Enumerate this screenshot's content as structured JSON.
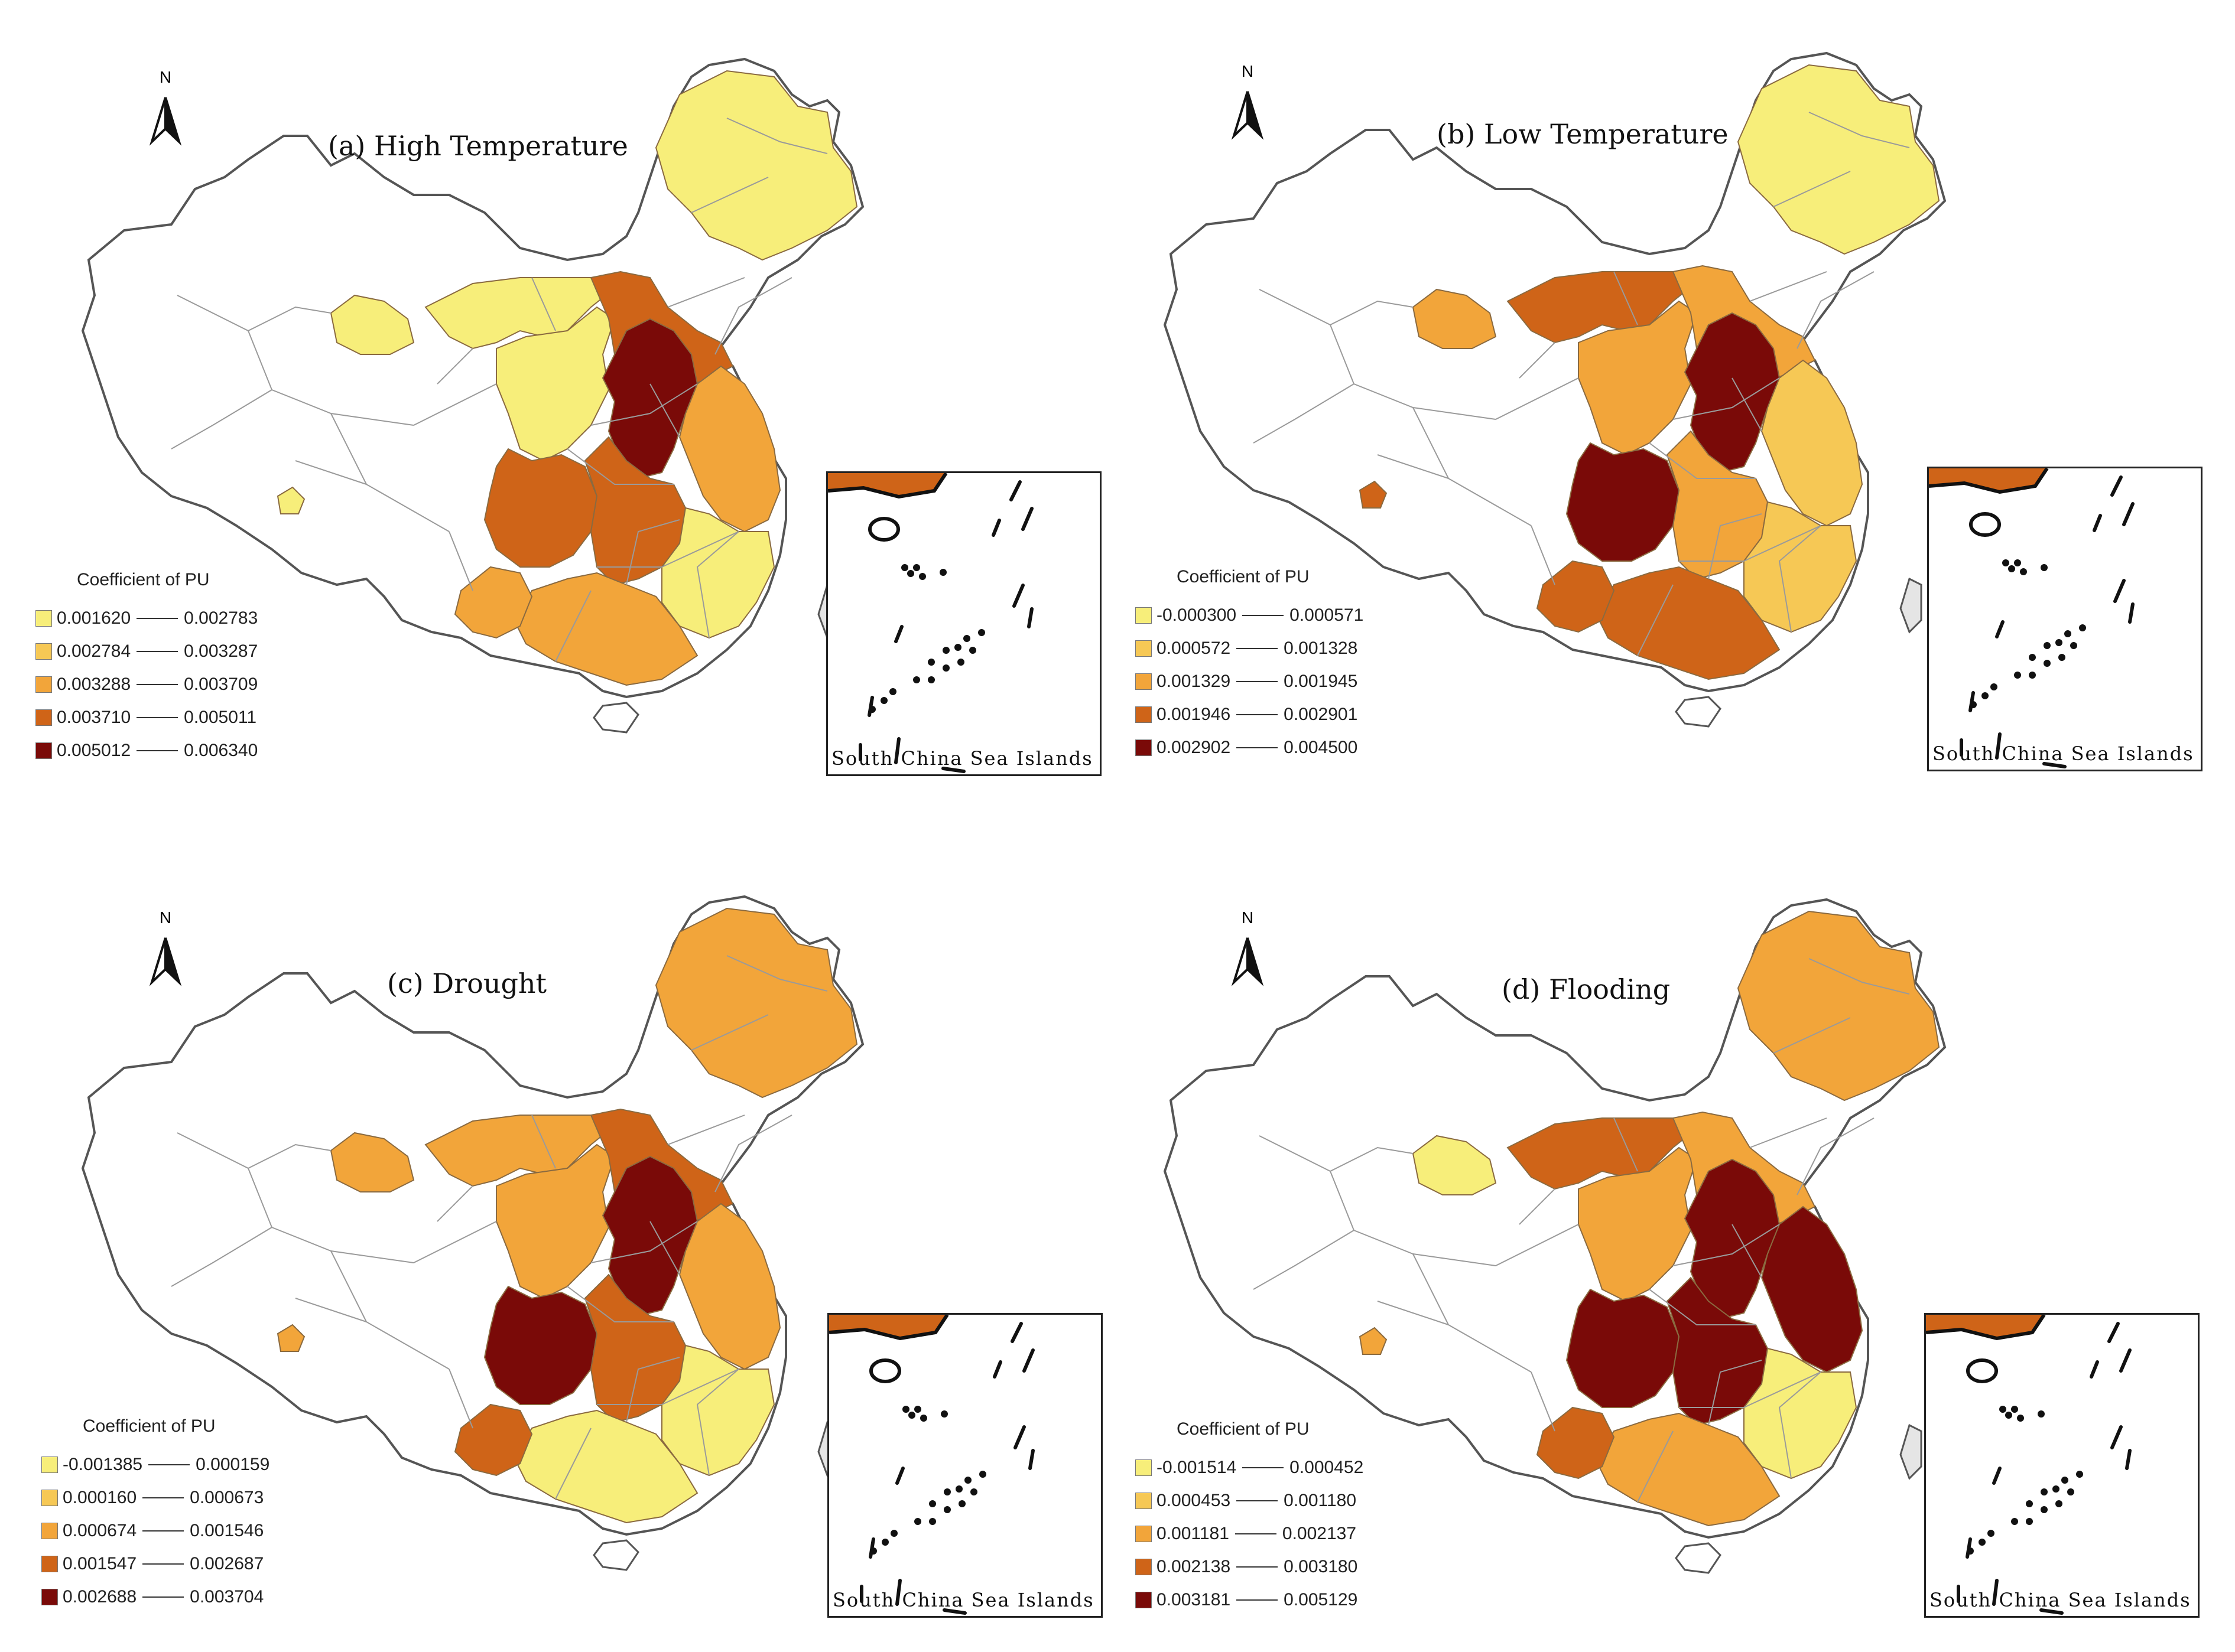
{
  "colors": {
    "c1": "#f7ee7a",
    "c2": "#f6c855",
    "c3": "#f2a53a",
    "c4": "#cf6418",
    "c5": "#7a0a08",
    "boundary": "#9a9a9a",
    "outline": "#555555"
  },
  "north_label": "N",
  "legend_title": "Coefficient of PU",
  "inset_caption": "South China Sea Islands",
  "panels": [
    {
      "id": "a",
      "title": "(a) High Temperature",
      "classes": [
        {
          "low": "0.001620",
          "high": "0.002783",
          "color": "#f7ee7a"
        },
        {
          "low": "0.002784",
          "high": "0.003287",
          "color": "#f6c855"
        },
        {
          "low": "0.003288",
          "high": "0.003709",
          "color": "#f2a53a"
        },
        {
          "low": "0.003710",
          "high": "0.005011",
          "color": "#cf6418"
        },
        {
          "low": "0.005012",
          "high": "0.006340",
          "color": "#7a0a08"
        }
      ],
      "regions": {
        "northeast": 1,
        "north_china": 5,
        "north_central": 4,
        "inner_mongolia_west": 1,
        "loess": 1,
        "sichuan": 4,
        "central": 4,
        "east_coast": 3,
        "south": 3,
        "southwest": 3,
        "xinjiang_north": 1,
        "tibet_spot": 1,
        "east_south": 1
      }
    },
    {
      "id": "b",
      "title": "(b) Low Temperature",
      "classes": [
        {
          "low": "-0.000300",
          "high": "0.000571",
          "color": "#f7ee7a"
        },
        {
          "low": "0.000572",
          "high": "0.001328",
          "color": "#f6c855"
        },
        {
          "low": "0.001329",
          "high": "0.001945",
          "color": "#f2a53a"
        },
        {
          "low": "0.001946",
          "high": "0.002901",
          "color": "#cf6418"
        },
        {
          "low": "0.002902",
          "high": "0.004500",
          "color": "#7a0a08"
        }
      ],
      "regions": {
        "northeast": 1,
        "north_china": 5,
        "north_central": 3,
        "inner_mongolia_west": 4,
        "loess": 3,
        "sichuan": 5,
        "central": 3,
        "east_coast": 2,
        "south": 4,
        "southwest": 4,
        "xinjiang_north": 3,
        "tibet_spot": 4,
        "east_south": 2
      }
    },
    {
      "id": "c",
      "title": "(c) Drought",
      "classes": [
        {
          "low": "-0.001385",
          "high": "0.000159",
          "color": "#f7ee7a"
        },
        {
          "low": "0.000160",
          "high": "0.000673",
          "color": "#f6c855"
        },
        {
          "low": "0.000674",
          "high": "0.001546",
          "color": "#f2a53a"
        },
        {
          "low": "0.001547",
          "high": "0.002687",
          "color": "#cf6418"
        },
        {
          "low": "0.002688",
          "high": "0.003704",
          "color": "#7a0a08"
        }
      ],
      "regions": {
        "northeast": 3,
        "north_china": 5,
        "north_central": 4,
        "inner_mongolia_west": 3,
        "loess": 3,
        "sichuan": 5,
        "central": 4,
        "east_coast": 3,
        "south": 1,
        "southwest": 4,
        "xinjiang_north": 3,
        "tibet_spot": 3,
        "east_south": 1
      }
    },
    {
      "id": "d",
      "title": "(d) Flooding",
      "classes": [
        {
          "low": "-0.001514",
          "high": "0.000452",
          "color": "#f7ee7a"
        },
        {
          "low": "0.000453",
          "high": "0.001180",
          "color": "#f6c855"
        },
        {
          "low": "0.001181",
          "high": "0.002137",
          "color": "#f2a53a"
        },
        {
          "low": "0.002138",
          "high": "0.003180",
          "color": "#cf6418"
        },
        {
          "low": "0.003181",
          "high": "0.005129",
          "color": "#7a0a08"
        }
      ],
      "regions": {
        "northeast": 3,
        "north_china": 5,
        "north_central": 3,
        "inner_mongolia_west": 4,
        "loess": 3,
        "sichuan": 5,
        "central": 5,
        "east_coast": 5,
        "south": 3,
        "southwest": 4,
        "xinjiang_north": 1,
        "tibet_spot": 3,
        "east_south": 1
      }
    }
  ]
}
